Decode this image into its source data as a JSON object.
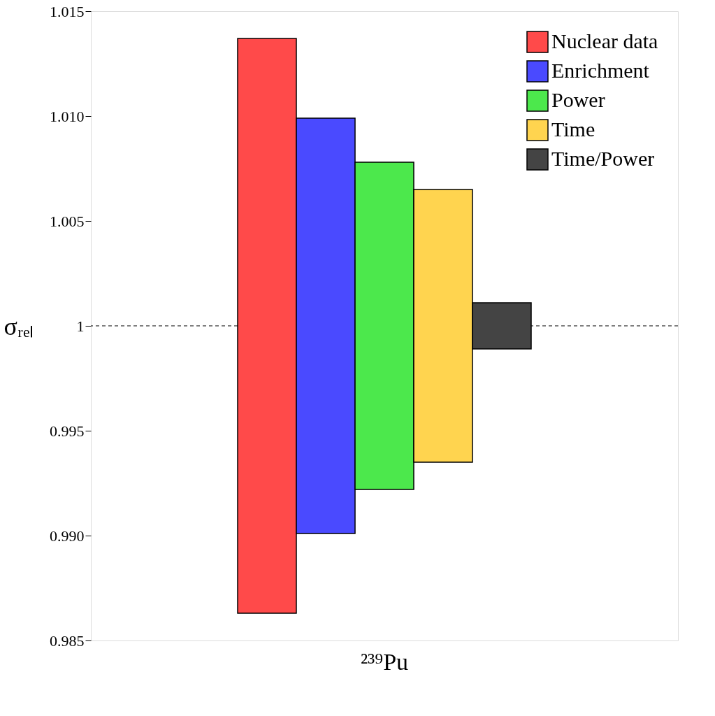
{
  "chart_data": {
    "type": "bar",
    "xlabel": null,
    "ylabel": "σᵣₑₗ",
    "categories": [
      "²³⁹Pu"
    ],
    "series": [
      {
        "name": "Nuclear data",
        "color": "#ff4a4a",
        "values": [
          0.0274
        ],
        "base": [
          0.9863
        ]
      },
      {
        "name": "Enrichment",
        "color": "#4a4aff",
        "values": [
          0.0198
        ],
        "base": [
          0.9901
        ]
      },
      {
        "name": "Power",
        "color": "#4ce84c",
        "values": [
          0.0156
        ],
        "base": [
          0.9922
        ]
      },
      {
        "name": "Time",
        "color": "#ffd44f",
        "values": [
          0.013
        ],
        "base": [
          0.9935
        ]
      },
      {
        "name": "Time/Power",
        "color": "#444444",
        "values": [
          0.0022
        ],
        "base": [
          0.9989
        ]
      }
    ],
    "ylim": [
      0.985,
      1.015
    ],
    "yticks": [
      0.985,
      {
        "value": 0.99,
        "label": "0.990"
      },
      0.995,
      1,
      1.005,
      {
        "value": 1.01,
        "label": "1.010"
      },
      1.015
    ],
    "ref_lines": [
      {
        "axis": "y",
        "value": 1,
        "line_style": "dashed",
        "color": "#000000"
      }
    ],
    "grid": false,
    "legend": "top right"
  }
}
